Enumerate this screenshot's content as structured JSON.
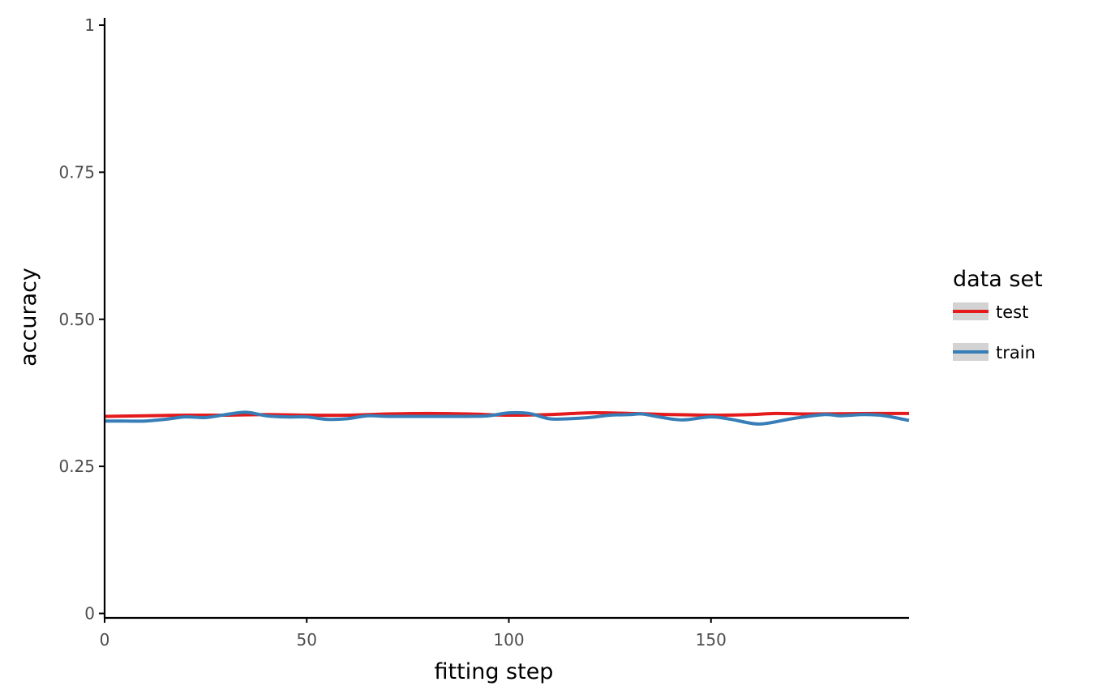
{
  "chart_data": {
    "type": "line",
    "title": "",
    "xlabel": "fitting step",
    "ylabel": "accuracy",
    "xlim": [
      0,
      199
    ],
    "ylim": [
      0,
      1
    ],
    "x_ticks": [
      {
        "value": 0,
        "label": "0"
      },
      {
        "value": 50,
        "label": "50"
      },
      {
        "value": 100,
        "label": "100"
      },
      {
        "value": 150,
        "label": "150"
      }
    ],
    "y_ticks": [
      {
        "value": 0,
        "label": "0"
      },
      {
        "value": 0.25,
        "label": "0.25"
      },
      {
        "value": 0.5,
        "label": "0.50"
      },
      {
        "value": 0.75,
        "label": "0.75"
      },
      {
        "value": 1,
        "label": "1"
      }
    ],
    "grid": false,
    "legend": {
      "title": "data set",
      "position": "right"
    },
    "series": [
      {
        "name": "test",
        "color": "#e41a1c",
        "points": [
          [
            0,
            0.335
          ],
          [
            10,
            0.336
          ],
          [
            20,
            0.337
          ],
          [
            30,
            0.337
          ],
          [
            40,
            0.338
          ],
          [
            50,
            0.337
          ],
          [
            60,
            0.337
          ],
          [
            70,
            0.339
          ],
          [
            80,
            0.34
          ],
          [
            90,
            0.339
          ],
          [
            100,
            0.337
          ],
          [
            110,
            0.338
          ],
          [
            120,
            0.341
          ],
          [
            130,
            0.34
          ],
          [
            140,
            0.338
          ],
          [
            150,
            0.337
          ],
          [
            160,
            0.338
          ],
          [
            166,
            0.34
          ],
          [
            175,
            0.339
          ],
          [
            190,
            0.34
          ],
          [
            199,
            0.34
          ]
        ]
      },
      {
        "name": "train",
        "color": "#377eb8",
        "points": [
          [
            0,
            0.327
          ],
          [
            5,
            0.327
          ],
          [
            10,
            0.327
          ],
          [
            15,
            0.33
          ],
          [
            20,
            0.334
          ],
          [
            25,
            0.333
          ],
          [
            30,
            0.338
          ],
          [
            35,
            0.342
          ],
          [
            40,
            0.336
          ],
          [
            45,
            0.334
          ],
          [
            50,
            0.334
          ],
          [
            55,
            0.33
          ],
          [
            60,
            0.331
          ],
          [
            65,
            0.336
          ],
          [
            70,
            0.335
          ],
          [
            80,
            0.335
          ],
          [
            90,
            0.335
          ],
          [
            95,
            0.336
          ],
          [
            100,
            0.341
          ],
          [
            105,
            0.34
          ],
          [
            110,
            0.331
          ],
          [
            115,
            0.331
          ],
          [
            120,
            0.333
          ],
          [
            125,
            0.337
          ],
          [
            130,
            0.338
          ],
          [
            133,
            0.339
          ],
          [
            138,
            0.333
          ],
          [
            143,
            0.329
          ],
          [
            150,
            0.334
          ],
          [
            155,
            0.33
          ],
          [
            162,
            0.322
          ],
          [
            170,
            0.331
          ],
          [
            178,
            0.338
          ],
          [
            182,
            0.336
          ],
          [
            188,
            0.338
          ],
          [
            193,
            0.336
          ],
          [
            199,
            0.328
          ]
        ]
      }
    ]
  }
}
